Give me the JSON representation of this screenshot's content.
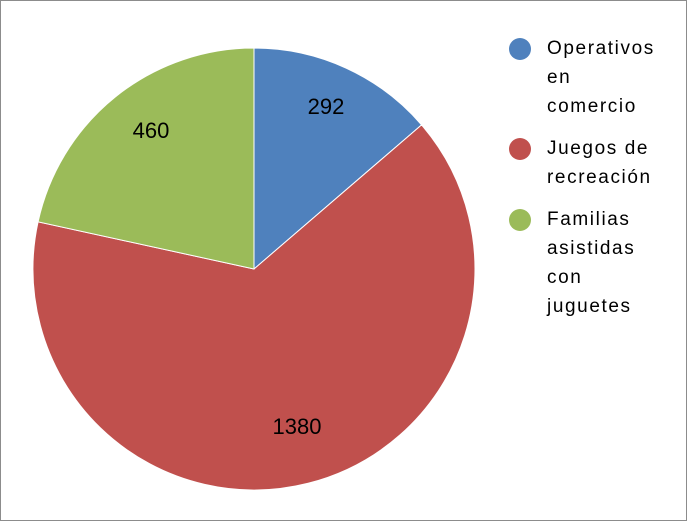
{
  "chart_data": {
    "type": "pie",
    "title": "",
    "categories": [
      "Operativos en comercio",
      "Juegos de recreación",
      "Familias asistidas con juguetes"
    ],
    "values": [
      292,
      1380,
      460
    ],
    "colors": [
      "#4F81BD",
      "#C0504D",
      "#9BBB59"
    ],
    "data_labels": [
      "292",
      "1380",
      "460"
    ],
    "start_angle": "12 o'clock",
    "direction": "clockwise",
    "legend_position": "right"
  },
  "legend": {
    "items": [
      {
        "label": "Operativos en comercio",
        "color": "#4F81BD"
      },
      {
        "label": "Juegos de recreación",
        "color": "#C0504D"
      },
      {
        "label": "Familias asistidas con juguetes",
        "color": "#9BBB59"
      }
    ]
  }
}
